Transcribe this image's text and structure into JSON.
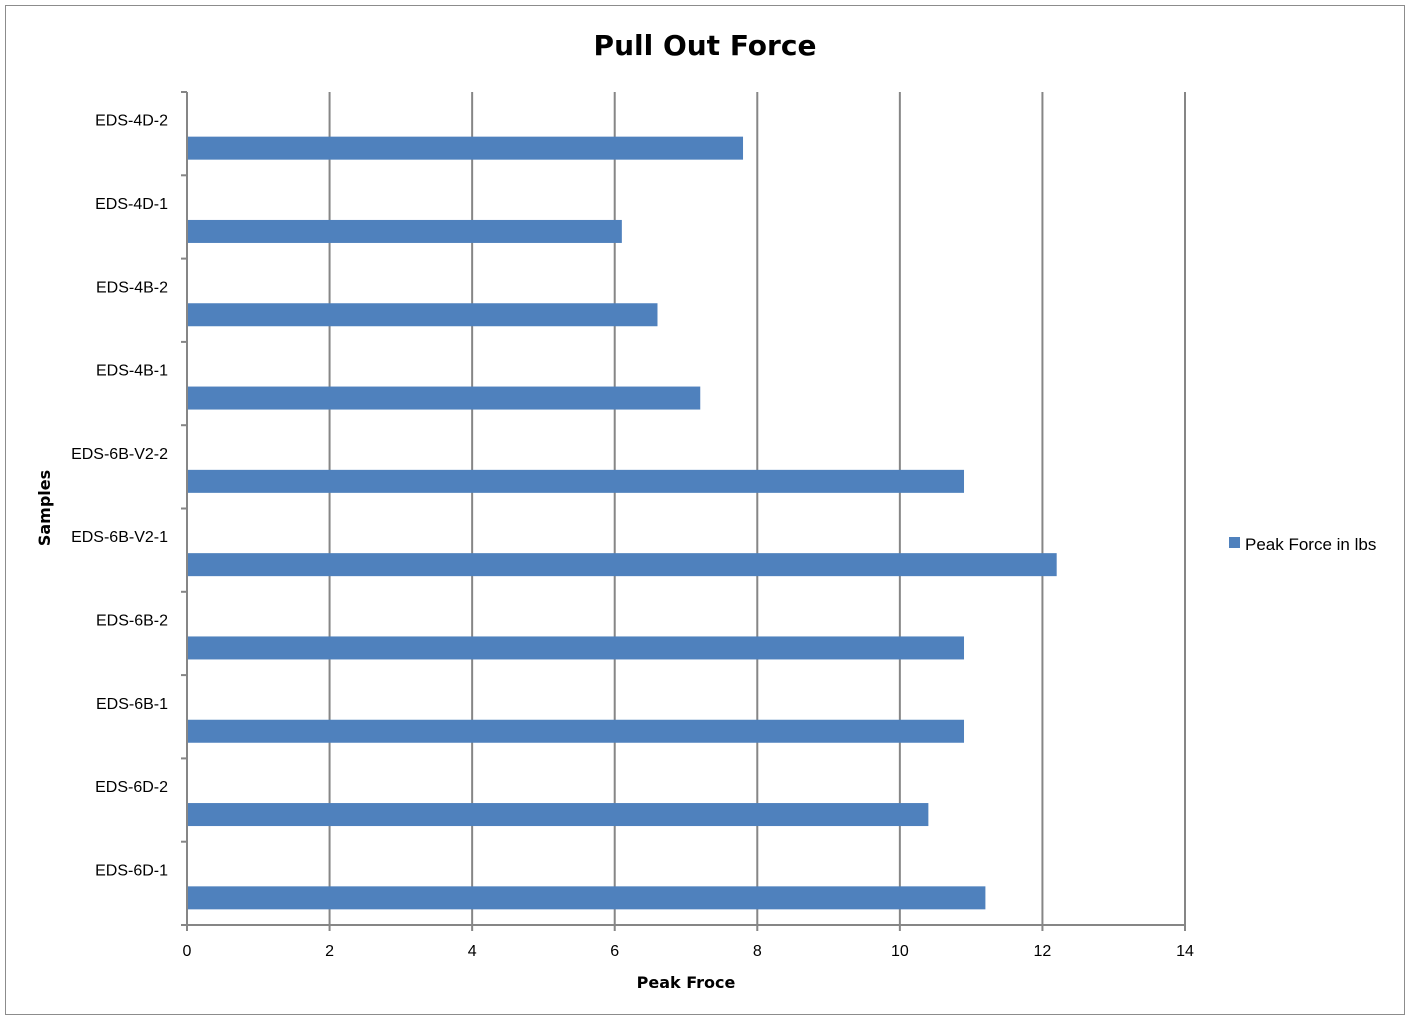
{
  "chart_data": {
    "type": "bar",
    "orientation": "horizontal",
    "title": "Pull Out Force",
    "xlabel": "Peak Froce",
    "ylabel": "Samples",
    "xlim": [
      0,
      14
    ],
    "xticks": [
      "0",
      "2",
      "4",
      "6",
      "8",
      "10",
      "12",
      "14"
    ],
    "categories": [
      "EDS-6D-1",
      "EDS-6D-2",
      "EDS-6B-1",
      "EDS-6B-2",
      "EDS-6B-V2-1",
      "EDS-6B-V2-2",
      "EDS-4B-1",
      "EDS-4B-2",
      "EDS-4D-1",
      "EDS-4D-2"
    ],
    "series": [
      {
        "name": "Peak Force in lbs",
        "values": [
          11.2,
          10.4,
          10.9,
          10.9,
          12.2,
          10.9,
          7.2,
          6.6,
          6.1,
          7.8
        ]
      }
    ],
    "bar_color": "#4f81bd",
    "gridlines": "vertical major",
    "legend_position": "right"
  }
}
